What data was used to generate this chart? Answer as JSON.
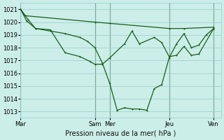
{
  "background_color": "#cceee8",
  "grid_color": "#99cccc",
  "line_color": "#1a5c1a",
  "marker_color": "#1a5c1a",
  "xlabel": "Pression niveau de la mer( hPa )",
  "ylim": [
    1012.5,
    1021.5
  ],
  "yticks": [
    1013,
    1014,
    1015,
    1016,
    1017,
    1018,
    1019,
    1020,
    1021
  ],
  "xtick_labels": [
    "Mar",
    "Sam",
    "Mer",
    "Jeu",
    "Ven"
  ],
  "xtick_positions": [
    0,
    5,
    6,
    10,
    13
  ],
  "xmin": 0,
  "xmax": 13.5,
  "series1_x": [
    0,
    0.3,
    5,
    6,
    10,
    11,
    13
  ],
  "series1_y": [
    1021.0,
    1020.5,
    1020.0,
    1019.9,
    1019.5,
    1019.5,
    1019.6
  ],
  "series2_x": [
    0,
    0.5,
    1,
    2,
    3,
    4,
    4.5,
    5,
    5.5,
    6,
    6.5,
    7,
    7.5,
    8,
    8.5,
    9,
    9.5,
    10,
    10.5,
    11,
    11.5,
    12,
    12.5,
    13
  ],
  "series2_y": [
    1021.0,
    1020.2,
    1019.5,
    1019.3,
    1019.1,
    1018.8,
    1018.5,
    1018.0,
    1016.8,
    1015.2,
    1013.1,
    1013.3,
    1013.2,
    1013.2,
    1013.1,
    1014.8,
    1015.1,
    1017.2,
    1018.3,
    1019.1,
    1018.0,
    1018.2,
    1019.0,
    1019.5
  ],
  "series3_x": [
    0,
    0.4,
    1,
    2,
    3,
    4,
    4.7,
    5,
    5.5,
    6,
    7,
    7.5,
    8,
    9,
    9.5,
    10,
    10.5,
    11,
    11.5,
    12,
    13
  ],
  "series3_y": [
    1021.0,
    1020.1,
    1019.5,
    1019.4,
    1017.6,
    1017.3,
    1016.9,
    1016.7,
    1016.7,
    1017.2,
    1018.3,
    1019.3,
    1018.3,
    1018.8,
    1018.4,
    1017.3,
    1017.4,
    1018.1,
    1017.4,
    1017.5,
    1019.5
  ]
}
